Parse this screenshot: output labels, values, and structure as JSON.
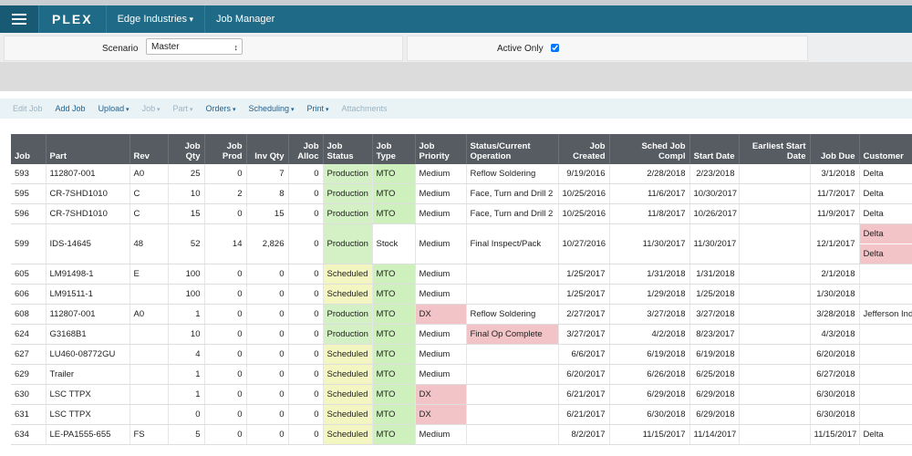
{
  "nav": {
    "brand": "PLEX",
    "company": "Edge Industries",
    "app": "Job Manager"
  },
  "filters": {
    "scenario_label": "Scenario",
    "scenario_value": "Master",
    "active_only_label": "Active Only",
    "active_only": true
  },
  "toolbar": [
    {
      "label": "Edit Job",
      "menu": false,
      "enabled": false
    },
    {
      "label": "Add Job",
      "menu": false,
      "enabled": true
    },
    {
      "label": "Upload",
      "menu": true,
      "enabled": true
    },
    {
      "label": "Job",
      "menu": true,
      "enabled": false
    },
    {
      "label": "Part",
      "menu": true,
      "enabled": false
    },
    {
      "label": "Orders",
      "menu": true,
      "enabled": true
    },
    {
      "label": "Scheduling",
      "menu": true,
      "enabled": true
    },
    {
      "label": "Print",
      "menu": true,
      "enabled": true
    },
    {
      "label": "Attachments",
      "menu": false,
      "enabled": false
    }
  ],
  "table": {
    "headers": [
      "Job",
      "Part",
      "Rev",
      "Job Qty",
      "Job Prod",
      "Inv Qty",
      "Job Alloc",
      "Job Status",
      "Job Type",
      "Job Priority",
      "Status/Current Operation",
      "Job Created",
      "Sched Job Compl",
      "Start Date",
      "Earliest Start Date",
      "Job Due",
      "Customer"
    ],
    "rows": [
      [
        593,
        "112807-001",
        "A0",
        25,
        0,
        7,
        0,
        "Production",
        "MTO",
        "Medium",
        "Reflow Soldering",
        "9/19/2016",
        "2/28/2018",
        "2/23/2018",
        null,
        "3/1/2018",
        "Delta"
      ],
      [
        595,
        "CR-7SHD1010",
        "C",
        10,
        2,
        8,
        0,
        "Production",
        "MTO",
        "Medium",
        "Face, Turn and Drill 2",
        "10/25/2016",
        "11/6/2017",
        "10/30/2017",
        null,
        "11/7/2017",
        "Delta"
      ],
      [
        596,
        "CR-7SHD1010",
        "C",
        15,
        0,
        15,
        0,
        "Production",
        "MTO",
        "Medium",
        "Face, Turn and Drill 2",
        "10/25/2016",
        "11/8/2017",
        "10/26/2017",
        null,
        "11/9/2017",
        "Delta"
      ],
      [
        599,
        "IDS-14645",
        "48",
        52,
        14,
        "2,826",
        0,
        "Production",
        "Stock",
        "Medium",
        "Final Inspect/Pack",
        "10/27/2016",
        "11/30/2017",
        "11/30/2017",
        null,
        "12/1/2017",
        [
          "Delta",
          "Delta"
        ]
      ],
      [
        605,
        "LM91498-1",
        "E",
        100,
        0,
        0,
        0,
        "Scheduled",
        "MTO",
        "Medium",
        null,
        "1/25/2017",
        "1/31/2018",
        "1/31/2018",
        null,
        "2/1/2018",
        null
      ],
      [
        606,
        "LM91511-1",
        null,
        100,
        0,
        0,
        0,
        "Scheduled",
        "MTO",
        "Medium",
        null,
        "1/25/2017",
        "1/29/2018",
        "1/25/2018",
        null,
        "1/30/2018",
        null
      ],
      [
        608,
        "112807-001",
        "A0",
        1,
        0,
        0,
        0,
        "Production",
        "MTO",
        "DX",
        "Reflow Soldering",
        "2/27/2017",
        "3/27/2018",
        "3/27/2018",
        null,
        "3/28/2018",
        "Jefferson Ind"
      ],
      [
        624,
        "G3168B1",
        null,
        10,
        0,
        0,
        0,
        "Production",
        "MTO",
        "Medium",
        "Final Op Complete",
        "3/27/2017",
        "4/2/2018",
        "8/23/2017",
        null,
        "4/3/2018",
        null
      ],
      [
        627,
        "LU460-08772GU",
        null,
        4,
        0,
        0,
        0,
        "Scheduled",
        "MTO",
        "Medium",
        null,
        "6/6/2017",
        "6/19/2018",
        "6/19/2018",
        null,
        "6/20/2018",
        null
      ],
      [
        629,
        "Trailer",
        null,
        1,
        0,
        0,
        0,
        "Scheduled",
        "MTO",
        "Medium",
        null,
        "6/20/2017",
        "6/26/2018",
        "6/25/2018",
        null,
        "6/27/2018",
        null
      ],
      [
        630,
        "LSC TTPX",
        null,
        1,
        0,
        0,
        0,
        "Scheduled",
        "MTO",
        "DX",
        null,
        "6/21/2017",
        "6/29/2018",
        "6/29/2018",
        null,
        "6/30/2018",
        null
      ],
      [
        631,
        "LSC TTPX",
        null,
        0,
        0,
        0,
        0,
        "Scheduled",
        "MTO",
        "DX",
        null,
        "6/21/2017",
        "6/30/2018",
        "6/29/2018",
        null,
        "6/30/2018",
        null
      ],
      [
        634,
        "LE-PA1555-655",
        "FS",
        5,
        0,
        0,
        0,
        "Scheduled",
        "MTO",
        "Medium",
        null,
        "8/2/2017",
        "11/15/2017",
        "11/14/2017",
        null,
        "11/15/2017",
        "Delta"
      ]
    ]
  }
}
